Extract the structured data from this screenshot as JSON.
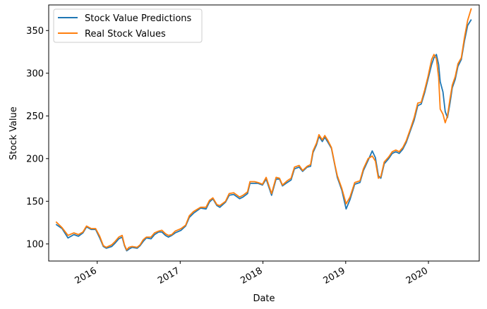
{
  "chart_data": {
    "type": "line",
    "title": "",
    "xlabel": "Date",
    "ylabel": "Stock Value",
    "x_ticks": [
      "2016",
      "2017",
      "2018",
      "2019",
      "2020"
    ],
    "y_ticks": [
      100,
      150,
      200,
      250,
      300,
      350
    ],
    "xlim": [
      "2015-06-01",
      "2020-08-12"
    ],
    "ylim": [
      80,
      380
    ],
    "grid": false,
    "legend_position": "top-left",
    "colors": {
      "predictions": "#1f77b4",
      "real": "#ff7f0e"
    },
    "series": [
      {
        "name": "Stock Value Predictions",
        "color": "#1f77b4",
        "points": [
          [
            "2015-07-03",
            123
          ],
          [
            "2015-07-30",
            118
          ],
          [
            "2015-08-25",
            107
          ],
          [
            "2015-09-20",
            111
          ],
          [
            "2015-10-10",
            109
          ],
          [
            "2015-10-30",
            113
          ],
          [
            "2015-11-15",
            120
          ],
          [
            "2015-12-05",
            117
          ],
          [
            "2015-12-25",
            117
          ],
          [
            "2016-01-12",
            107
          ],
          [
            "2016-01-28",
            97
          ],
          [
            "2016-02-10",
            95
          ],
          [
            "2016-03-05",
            97
          ],
          [
            "2016-03-20",
            101
          ],
          [
            "2016-04-05",
            106
          ],
          [
            "2016-04-20",
            108
          ],
          [
            "2016-04-30",
            98
          ],
          [
            "2016-05-10",
            92
          ],
          [
            "2016-05-20",
            94
          ],
          [
            "2016-06-03",
            96
          ],
          [
            "2016-06-25",
            95
          ],
          [
            "2016-07-08",
            98
          ],
          [
            "2016-07-22",
            103
          ],
          [
            "2016-08-05",
            107
          ],
          [
            "2016-08-25",
            106
          ],
          [
            "2016-09-10",
            111
          ],
          [
            "2016-09-28",
            114
          ],
          [
            "2016-10-12",
            114
          ],
          [
            "2016-10-28",
            110
          ],
          [
            "2016-11-10",
            108
          ],
          [
            "2016-11-25",
            110
          ],
          [
            "2016-12-10",
            113
          ],
          [
            "2017-01-05",
            116
          ],
          [
            "2017-01-25",
            121
          ],
          [
            "2017-02-10",
            131
          ],
          [
            "2017-03-01",
            136
          ],
          [
            "2017-04-01",
            142
          ],
          [
            "2017-04-25",
            141
          ],
          [
            "2017-05-10",
            149
          ],
          [
            "2017-05-25",
            153
          ],
          [
            "2017-06-12",
            145
          ],
          [
            "2017-06-25",
            143
          ],
          [
            "2017-07-20",
            149
          ],
          [
            "2017-08-05",
            157
          ],
          [
            "2017-08-25",
            158
          ],
          [
            "2017-09-20",
            153
          ],
          [
            "2017-10-05",
            155
          ],
          [
            "2017-10-25",
            159
          ],
          [
            "2017-11-05",
            171
          ],
          [
            "2017-11-25",
            171
          ],
          [
            "2017-12-10",
            171
          ],
          [
            "2017-12-30",
            169
          ],
          [
            "2018-01-15",
            176
          ],
          [
            "2018-02-08",
            157
          ],
          [
            "2018-02-28",
            176
          ],
          [
            "2018-03-15",
            176
          ],
          [
            "2018-03-28",
            168
          ],
          [
            "2018-04-18",
            172
          ],
          [
            "2018-05-05",
            175
          ],
          [
            "2018-05-20",
            188
          ],
          [
            "2018-06-10",
            190
          ],
          [
            "2018-06-25",
            185
          ],
          [
            "2018-07-15",
            190
          ],
          [
            "2018-07-30",
            191
          ],
          [
            "2018-08-10",
            207
          ],
          [
            "2018-08-25",
            216
          ],
          [
            "2018-09-05",
            226
          ],
          [
            "2018-09-20",
            220
          ],
          [
            "2018-10-01",
            225
          ],
          [
            "2018-10-15",
            219
          ],
          [
            "2018-10-30",
            212
          ],
          [
            "2018-11-15",
            191
          ],
          [
            "2018-11-25",
            178
          ],
          [
            "2018-12-15",
            163
          ],
          [
            "2019-01-03",
            141
          ],
          [
            "2019-01-20",
            152
          ],
          [
            "2019-02-10",
            170
          ],
          [
            "2019-03-05",
            172
          ],
          [
            "2019-03-20",
            186
          ],
          [
            "2019-04-10",
            198
          ],
          [
            "2019-04-28",
            209
          ],
          [
            "2019-05-12",
            201
          ],
          [
            "2019-05-25",
            180
          ],
          [
            "2019-06-05",
            177
          ],
          [
            "2019-06-20",
            194
          ],
          [
            "2019-07-10",
            200
          ],
          [
            "2019-07-25",
            206
          ],
          [
            "2019-08-10",
            208
          ],
          [
            "2019-08-25",
            206
          ],
          [
            "2019-09-10",
            211
          ],
          [
            "2019-09-25",
            219
          ],
          [
            "2019-10-15",
            234
          ],
          [
            "2019-10-30",
            245
          ],
          [
            "2019-11-15",
            262
          ],
          [
            "2019-11-30",
            264
          ],
          [
            "2019-12-15",
            277
          ],
          [
            "2019-12-30",
            293
          ],
          [
            "2020-01-15",
            310
          ],
          [
            "2020-01-25",
            318
          ],
          [
            "2020-02-05",
            322
          ],
          [
            "2020-02-15",
            310
          ],
          [
            "2020-02-22",
            290
          ],
          [
            "2020-03-05",
            278
          ],
          [
            "2020-03-15",
            255
          ],
          [
            "2020-03-25",
            248
          ],
          [
            "2020-04-05",
            265
          ],
          [
            "2020-04-15",
            283
          ],
          [
            "2020-04-28",
            293
          ],
          [
            "2020-05-10",
            308
          ],
          [
            "2020-05-25",
            316
          ],
          [
            "2020-06-08",
            338
          ],
          [
            "2020-06-22",
            356
          ],
          [
            "2020-07-08",
            363
          ]
        ]
      },
      {
        "name": "Real Stock Values",
        "color": "#ff7f0e",
        "points": [
          [
            "2015-07-03",
            126
          ],
          [
            "2015-07-30",
            119
          ],
          [
            "2015-08-25",
            110
          ],
          [
            "2015-09-20",
            113
          ],
          [
            "2015-10-10",
            111
          ],
          [
            "2015-10-30",
            114
          ],
          [
            "2015-11-15",
            121
          ],
          [
            "2015-12-05",
            118
          ],
          [
            "2015-12-25",
            118
          ],
          [
            "2016-01-12",
            109
          ],
          [
            "2016-01-28",
            98
          ],
          [
            "2016-02-10",
            96
          ],
          [
            "2016-03-05",
            99
          ],
          [
            "2016-03-20",
            103
          ],
          [
            "2016-04-05",
            108
          ],
          [
            "2016-04-20",
            110
          ],
          [
            "2016-04-30",
            99
          ],
          [
            "2016-05-10",
            93
          ],
          [
            "2016-05-20",
            96
          ],
          [
            "2016-06-03",
            97
          ],
          [
            "2016-06-25",
            96
          ],
          [
            "2016-07-08",
            99
          ],
          [
            "2016-07-22",
            105
          ],
          [
            "2016-08-05",
            108
          ],
          [
            "2016-08-25",
            108
          ],
          [
            "2016-09-10",
            113
          ],
          [
            "2016-09-28",
            115
          ],
          [
            "2016-10-12",
            116
          ],
          [
            "2016-10-28",
            112
          ],
          [
            "2016-11-10",
            110
          ],
          [
            "2016-11-25",
            111
          ],
          [
            "2016-12-10",
            115
          ],
          [
            "2017-01-05",
            118
          ],
          [
            "2017-01-25",
            122
          ],
          [
            "2017-02-10",
            133
          ],
          [
            "2017-03-01",
            138
          ],
          [
            "2017-04-01",
            143
          ],
          [
            "2017-04-25",
            143
          ],
          [
            "2017-05-10",
            151
          ],
          [
            "2017-05-25",
            154
          ],
          [
            "2017-06-12",
            146
          ],
          [
            "2017-06-25",
            145
          ],
          [
            "2017-07-20",
            150
          ],
          [
            "2017-08-05",
            159
          ],
          [
            "2017-08-25",
            160
          ],
          [
            "2017-09-20",
            155
          ],
          [
            "2017-10-05",
            157
          ],
          [
            "2017-10-25",
            161
          ],
          [
            "2017-11-05",
            173
          ],
          [
            "2017-11-25",
            173
          ],
          [
            "2017-12-10",
            172
          ],
          [
            "2017-12-30",
            170
          ],
          [
            "2018-01-15",
            178
          ],
          [
            "2018-02-08",
            159
          ],
          [
            "2018-02-28",
            178
          ],
          [
            "2018-03-15",
            177
          ],
          [
            "2018-03-28",
            169
          ],
          [
            "2018-04-18",
            174
          ],
          [
            "2018-05-05",
            177
          ],
          [
            "2018-05-20",
            190
          ],
          [
            "2018-06-10",
            192
          ],
          [
            "2018-06-25",
            186
          ],
          [
            "2018-07-15",
            191
          ],
          [
            "2018-07-30",
            193
          ],
          [
            "2018-08-10",
            209
          ],
          [
            "2018-08-25",
            218
          ],
          [
            "2018-09-05",
            228
          ],
          [
            "2018-09-20",
            222
          ],
          [
            "2018-10-01",
            227
          ],
          [
            "2018-10-15",
            221
          ],
          [
            "2018-10-30",
            213
          ],
          [
            "2018-11-15",
            192
          ],
          [
            "2018-11-25",
            180
          ],
          [
            "2018-12-15",
            165
          ],
          [
            "2019-01-03",
            147
          ],
          [
            "2019-01-20",
            155
          ],
          [
            "2019-02-10",
            172
          ],
          [
            "2019-03-05",
            174
          ],
          [
            "2019-03-20",
            188
          ],
          [
            "2019-04-10",
            200
          ],
          [
            "2019-04-28",
            203
          ],
          [
            "2019-05-12",
            197
          ],
          [
            "2019-05-25",
            177
          ],
          [
            "2019-06-05",
            179
          ],
          [
            "2019-06-20",
            196
          ],
          [
            "2019-07-10",
            202
          ],
          [
            "2019-07-25",
            208
          ],
          [
            "2019-08-10",
            210
          ],
          [
            "2019-08-25",
            208
          ],
          [
            "2019-09-10",
            213
          ],
          [
            "2019-09-25",
            221
          ],
          [
            "2019-10-15",
            236
          ],
          [
            "2019-10-30",
            248
          ],
          [
            "2019-11-15",
            265
          ],
          [
            "2019-11-30",
            266
          ],
          [
            "2019-12-15",
            280
          ],
          [
            "2019-12-30",
            296
          ],
          [
            "2020-01-15",
            316
          ],
          [
            "2020-01-25",
            322
          ],
          [
            "2020-02-05",
            317
          ],
          [
            "2020-02-15",
            295
          ],
          [
            "2020-02-22",
            258
          ],
          [
            "2020-03-05",
            252
          ],
          [
            "2020-03-15",
            242
          ],
          [
            "2020-03-25",
            250
          ],
          [
            "2020-04-05",
            270
          ],
          [
            "2020-04-15",
            286
          ],
          [
            "2020-04-28",
            296
          ],
          [
            "2020-05-10",
            311
          ],
          [
            "2020-05-25",
            318
          ],
          [
            "2020-06-08",
            342
          ],
          [
            "2020-06-22",
            362
          ],
          [
            "2020-07-08",
            376
          ]
        ]
      }
    ]
  }
}
